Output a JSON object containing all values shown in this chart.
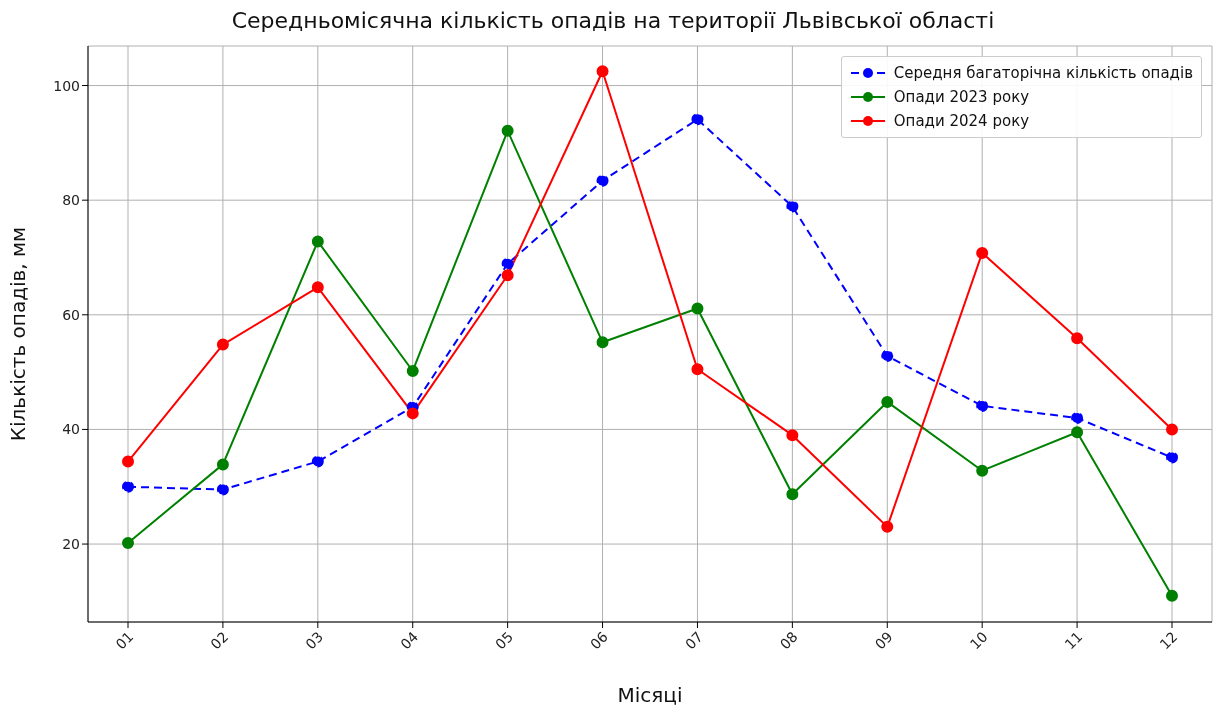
{
  "chart_data": {
    "type": "line",
    "title": "Середньомісячна кількість опадів на території Львівської області",
    "xlabel": "Місяці",
    "ylabel": "Кількість опадів, мм",
    "categories": [
      "01",
      "02",
      "03",
      "04",
      "05",
      "06",
      "07",
      "08",
      "09",
      "10",
      "11",
      "12"
    ],
    "series": [
      {
        "name": "Середня багаторічна кількість опадів",
        "color": "#0000ff",
        "line_style": "dashed",
        "values": [
          30.0,
          29.5,
          34.4,
          43.9,
          68.9,
          83.4,
          94.1,
          78.9,
          52.8,
          44.1,
          42.0,
          35.1
        ]
      },
      {
        "name": "Опади 2023 року",
        "color": "#008000",
        "line_style": "solid",
        "values": [
          20.2,
          33.9,
          72.8,
          50.2,
          92.1,
          55.2,
          61.1,
          28.7,
          44.8,
          32.8,
          39.5,
          11.0
        ]
      },
      {
        "name": "Опади 2024 року",
        "color": "#ff0000",
        "line_style": "solid",
        "values": [
          34.4,
          54.8,
          64.8,
          42.8,
          66.9,
          102.5,
          50.5,
          39.0,
          23.0,
          70.8,
          55.9,
          40.0
        ]
      }
    ],
    "ylim": [
      6.4,
      106.9
    ],
    "yticks": [
      20,
      40,
      60,
      80,
      100
    ],
    "grid": true,
    "legend": "top right",
    "marker": "circle"
  }
}
